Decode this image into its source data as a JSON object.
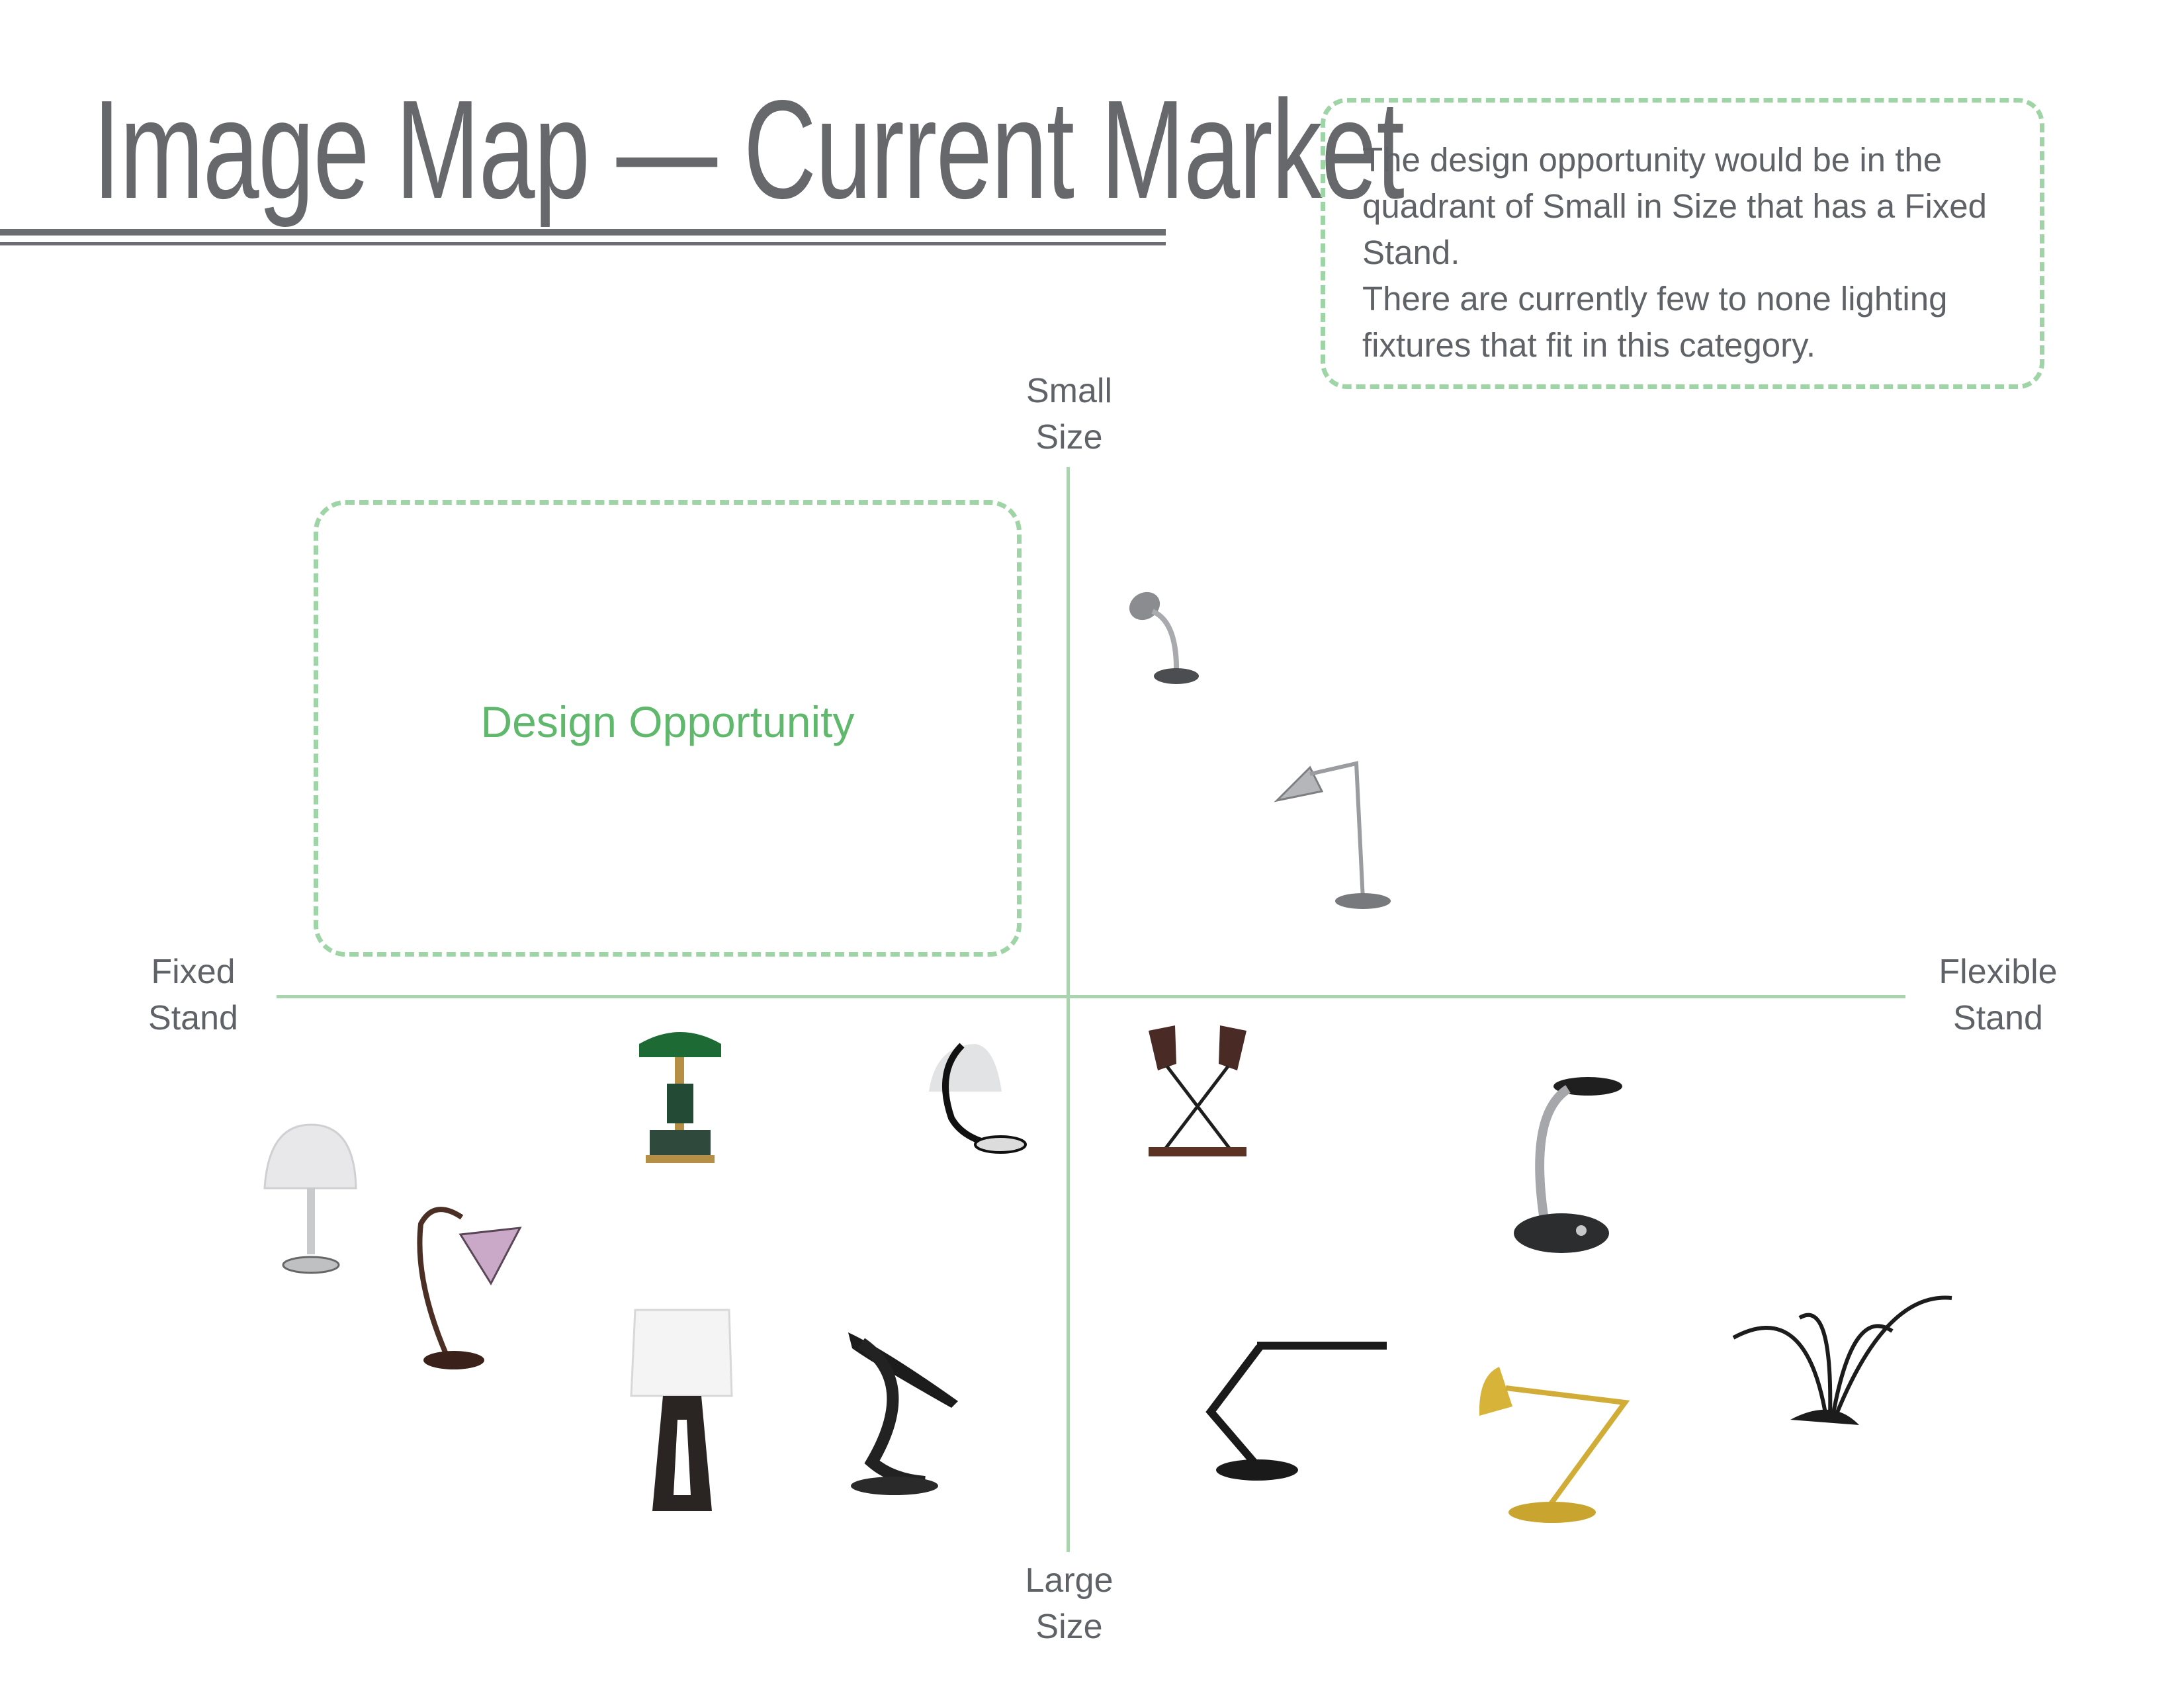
{
  "title": "Image Map — Current Market",
  "note": {
    "line1": "The design opportunity would be in the quadrant of Small in Size that has a Fixed Stand.",
    "line2": "There are currently few to none lighting fixtures that fit in this category."
  },
  "axes": {
    "top": [
      "Small",
      "Size"
    ],
    "bottom": [
      "Large",
      "Size"
    ],
    "left": [
      "Fixed",
      "Stand"
    ],
    "right": [
      "Flexible",
      "Stand"
    ]
  },
  "opportunity": {
    "label": "Design Opportunity"
  },
  "colors": {
    "accent_green": "#9fd5a6",
    "label_green": "#5fb86b",
    "axis_green": "#a9d4ae",
    "text_gray": "#5f6266"
  },
  "lamps": [
    {
      "icon": "mini-gooseneck-lamp-icon"
    },
    {
      "icon": "silver-cone-desk-lamp-icon"
    },
    {
      "icon": "green-bankers-lamp-icon"
    },
    {
      "icon": "crescent-dome-lamp-icon"
    },
    {
      "icon": "crossed-double-spot-lamp-icon"
    },
    {
      "icon": "flexible-gooseneck-led-lamp-icon"
    },
    {
      "icon": "white-mushroom-lamp-icon"
    },
    {
      "icon": "tiffany-glass-lamp-icon"
    },
    {
      "icon": "white-drum-shade-lamp-icon"
    },
    {
      "icon": "twisted-ribbon-lamp-icon"
    },
    {
      "icon": "black-architect-led-lamp-icon"
    },
    {
      "icon": "yellow-swing-arm-lamp-icon"
    },
    {
      "icon": "multi-arm-spider-lamp-icon"
    }
  ]
}
